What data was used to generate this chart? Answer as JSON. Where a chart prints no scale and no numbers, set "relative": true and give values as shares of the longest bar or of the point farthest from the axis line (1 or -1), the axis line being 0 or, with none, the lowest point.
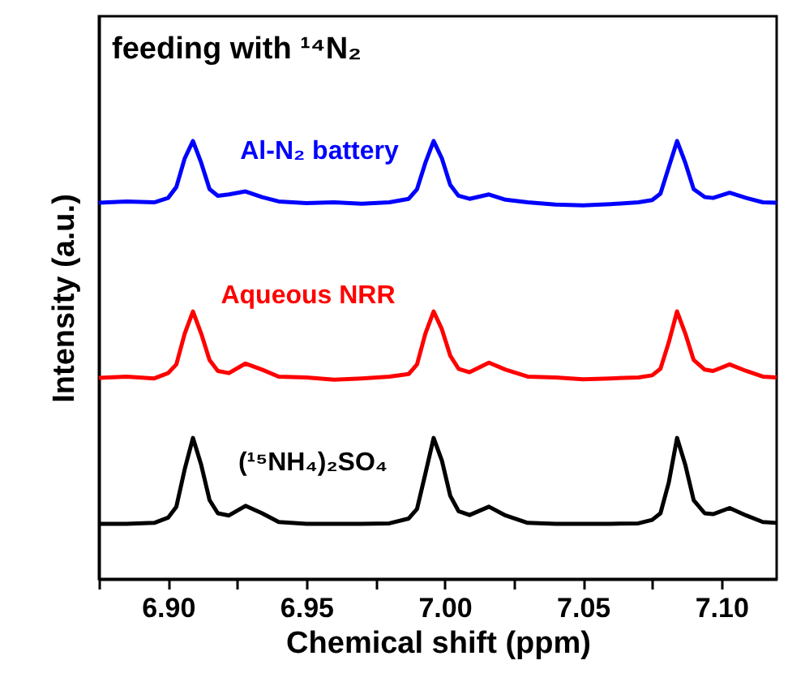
{
  "chart_data": {
    "type": "line",
    "relative": true,
    "xlabel": "Chemical shift (ppm)",
    "ylabel": "Intensity (a.u.)",
    "annotations": [
      "feeding with ¹⁴N₂"
    ],
    "xlim": [
      6.875,
      7.12
    ],
    "xticks": [
      {
        "value": 6.875,
        "label": null
      },
      {
        "value": 6.9,
        "label": "6.90"
      },
      {
        "value": 6.925,
        "label": null
      },
      6.95,
      {
        "value": 6.975,
        "label": null
      },
      {
        "value": 7.0,
        "label": "7.00"
      },
      {
        "value": 7.025,
        "label": null
      },
      7.05,
      {
        "value": 7.075,
        "label": null
      },
      {
        "value": 7.1,
        "label": "7.10"
      }
    ],
    "grid": false,
    "line_style": "solid",
    "marker": "none",
    "x": [
      6.875,
      6.885,
      6.895,
      6.9,
      6.903,
      6.906,
      6.909,
      6.912,
      6.915,
      6.918,
      6.922,
      6.928,
      6.934,
      6.94,
      6.95,
      6.96,
      6.97,
      6.98,
      6.987,
      6.99,
      6.993,
      6.996,
      6.999,
      7.002,
      7.005,
      7.009,
      7.016,
      7.022,
      7.03,
      7.04,
      7.05,
      7.06,
      7.07,
      7.075,
      7.078,
      7.081,
      7.084,
      7.087,
      7.09,
      7.094,
      7.097,
      7.103,
      7.109,
      7.115,
      7.12
    ],
    "series": [
      {
        "name": "(¹⁵NH₄)₂SO₄",
        "color": "#000000",
        "values": [
          0.126,
          0.126,
          0.128,
          0.14,
          0.165,
          0.25,
          0.322,
          0.26,
          0.18,
          0.15,
          0.145,
          0.167,
          0.15,
          0.13,
          0.126,
          0.126,
          0.126,
          0.127,
          0.138,
          0.16,
          0.24,
          0.322,
          0.27,
          0.19,
          0.155,
          0.146,
          0.165,
          0.145,
          0.128,
          0.126,
          0.126,
          0.126,
          0.127,
          0.135,
          0.15,
          0.22,
          0.322,
          0.26,
          0.18,
          0.15,
          0.148,
          0.162,
          0.145,
          0.13,
          0.128
        ]
      },
      {
        "name": "Aqueous NRR",
        "color": "#ff0000",
        "values": [
          0.459,
          0.462,
          0.458,
          0.47,
          0.49,
          0.56,
          0.611,
          0.56,
          0.5,
          0.475,
          0.47,
          0.492,
          0.478,
          0.462,
          0.46,
          0.455,
          0.458,
          0.462,
          0.468,
          0.49,
          0.56,
          0.611,
          0.57,
          0.51,
          0.48,
          0.472,
          0.494,
          0.478,
          0.462,
          0.46,
          0.456,
          0.458,
          0.46,
          0.465,
          0.48,
          0.54,
          0.611,
          0.56,
          0.5,
          0.478,
          0.475,
          0.49,
          0.475,
          0.462,
          0.46
        ]
      },
      {
        "name": "Al-N₂ battery",
        "color": "#0000ff",
        "values": [
          0.859,
          0.862,
          0.86,
          0.87,
          0.895,
          0.96,
          1.0,
          0.95,
          0.89,
          0.875,
          0.878,
          0.885,
          0.872,
          0.862,
          0.858,
          0.86,
          0.857,
          0.86,
          0.868,
          0.89,
          0.95,
          1.0,
          0.96,
          0.9,
          0.875,
          0.868,
          0.878,
          0.866,
          0.86,
          0.855,
          0.853,
          0.856,
          0.86,
          0.865,
          0.88,
          0.94,
          1.0,
          0.95,
          0.89,
          0.872,
          0.87,
          0.882,
          0.87,
          0.86,
          0.859
        ]
      }
    ]
  }
}
